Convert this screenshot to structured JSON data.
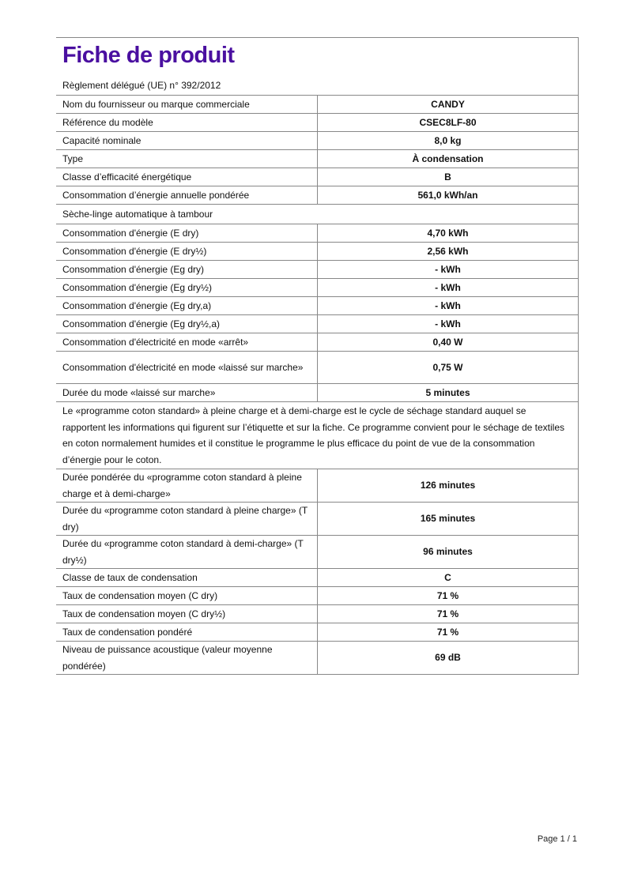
{
  "title": "Fiche de produit",
  "regulation": "Règlement délégué (UE) n° 392/2012",
  "rows_top": [
    {
      "label": "Nom du fournisseur ou marque commerciale",
      "value": "CANDY"
    },
    {
      "label": "Référence du modèle",
      "value": "CSEC8LF-80"
    },
    {
      "label": "Capacité nominale",
      "value": "8,0 kg"
    },
    {
      "label": "Type",
      "value": "À condensation"
    },
    {
      "label": "Classe d’efficacité énergétique",
      "value": "B"
    },
    {
      "label": "Consommation d’énergie annuelle pondérée",
      "value": "561,0 kWh/an"
    }
  ],
  "section_dryer": "Sèche-linge automatique à tambour",
  "rows_mid": [
    {
      "label": "Consommation d'énergie (E dry)",
      "value": "4,70 kWh"
    },
    {
      "label": "Consommation d'énergie (E dry½)",
      "value": "2,56 kWh"
    },
    {
      "label": "Consommation d'énergie (Eg dry)",
      "value": "- kWh"
    },
    {
      "label": "Consommation d'énergie (Eg dry½)",
      "value": "- kWh"
    },
    {
      "label": "Consommation d'énergie (Eg dry,a)",
      "value": "- kWh"
    },
    {
      "label": "Consommation d'énergie (Eg dry½,a)",
      "value": "- kWh"
    },
    {
      "label": "Consommation d'électricité en mode «arrêt»",
      "value": "0,40 W"
    },
    {
      "label": "Consommation d'électricité en mode «laissé sur marche»",
      "value": "0,75 W"
    },
    {
      "label": "Durée du mode «laissé sur marche»",
      "value": "5 minutes"
    }
  ],
  "programme_note": "Le «programme coton standard» à pleine charge et à demi-charge est le cycle de séchage standard auquel se rapportent les informations qui figurent sur l’étiquette et sur la fiche. Ce programme convient pour le séchage de textiles en coton normalement humides et il constitue le programme le plus efficace du point de vue de la consommation d’énergie pour le coton.",
  "rows_bottom": [
    {
      "label": "Durée pondérée du «programme coton standard à pleine charge et à demi-charge»",
      "value": "126 minutes"
    },
    {
      "label": "Durée du «programme coton standard à pleine charge» (T dry)",
      "value": "165 minutes"
    },
    {
      "label": "Durée du «programme coton standard à demi-charge» (T dry½)",
      "value": "96 minutes"
    },
    {
      "label": "Classe de taux de condensation",
      "value": "C"
    },
    {
      "label": "Taux de condensation moyen (C dry)",
      "value": "71 %"
    },
    {
      "label": "Taux de condensation moyen (C dry½)",
      "value": "71 %"
    },
    {
      "label": "Taux de condensation pondéré",
      "value": "71 %"
    },
    {
      "label": "Niveau de puissance acoustique (valeur moyenne pondérée)",
      "value": "69 dB"
    }
  ],
  "footer": "Page 1 / 1",
  "colors": {
    "title": "#4a0fa0",
    "border": "#888888"
  }
}
